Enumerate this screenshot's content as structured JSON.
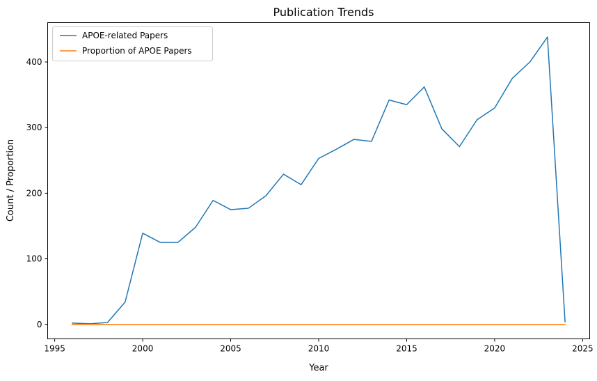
{
  "chart_data": {
    "type": "line",
    "title": "Publication Trends",
    "xlabel": "Year",
    "ylabel": "Count / Proportion",
    "xlim": [
      1994.6,
      2025.4
    ],
    "ylim": [
      -22,
      460
    ],
    "xticks": [
      1995,
      2000,
      2005,
      2010,
      2015,
      2020,
      2025
    ],
    "yticks": [
      0,
      100,
      200,
      300,
      400
    ],
    "grid": false,
    "legend_position": "top-left",
    "x": [
      1996,
      1997,
      1998,
      1999,
      2000,
      2001,
      2002,
      2003,
      2004,
      2005,
      2006,
      2007,
      2008,
      2009,
      2010,
      2011,
      2012,
      2013,
      2014,
      2015,
      2016,
      2017,
      2018,
      2019,
      2020,
      2021,
      2022,
      2023,
      2024
    ],
    "series": [
      {
        "name": "APOE-related Papers",
        "color": "#1f77b4",
        "values": [
          2,
          1,
          3,
          34,
          139,
          125,
          125,
          148,
          189,
          175,
          177,
          196,
          229,
          213,
          253,
          267,
          282,
          279,
          342,
          335,
          362,
          298,
          271,
          312,
          330,
          375,
          400,
          438,
          4
        ]
      },
      {
        "name": "Proportion of APOE Papers",
        "color": "#ff7f0e",
        "values": [
          0.001,
          0.001,
          0.001,
          0.002,
          0.004,
          0.003,
          0.003,
          0.003,
          0.004,
          0.003,
          0.003,
          0.003,
          0.004,
          0.003,
          0.004,
          0.004,
          0.004,
          0.004,
          0.004,
          0.004,
          0.004,
          0.003,
          0.003,
          0.003,
          0.003,
          0.003,
          0.003,
          0.003,
          0.001
        ]
      }
    ]
  }
}
